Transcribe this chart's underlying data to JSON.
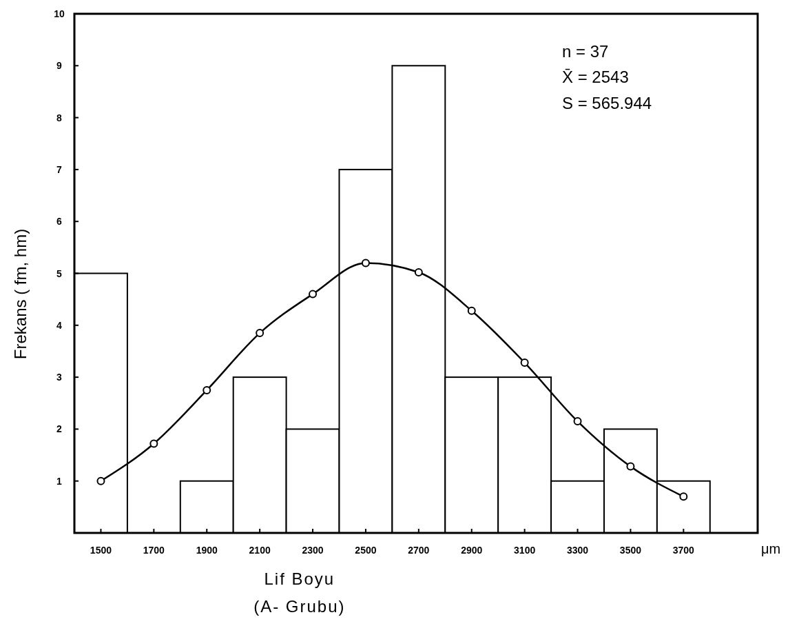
{
  "chart_data": {
    "type": "histogram",
    "xlabel": "Lif Boyu",
    "ylabel": "Frekans ( fm, hm)",
    "bins": [
      1400,
      1600,
      1800,
      2000,
      2200,
      2400,
      2600,
      2800,
      3000,
      3200,
      3400,
      3600,
      3800
    ],
    "values": [
      5,
      0,
      1,
      3,
      2,
      7,
      9,
      3,
      3,
      1,
      2,
      1
    ],
    "color": "#ffffff",
    "series": [
      {
        "type": "line",
        "color": "#000000",
        "marker": "circle",
        "x": [
          1500,
          1700,
          1900,
          2100,
          2300,
          2500,
          2700,
          2900,
          3100,
          3300,
          3500,
          3700
        ],
        "values": [
          1,
          1.72,
          2.75,
          3.85,
          4.6,
          5.2,
          5.02,
          4.28,
          3.28,
          2.15,
          1.28,
          0.7
        ]
      }
    ],
    "xlim": [
      1400,
      3980
    ],
    "ylim": [
      0,
      10
    ],
    "xticks": [
      1500,
      1700,
      1900,
      2100,
      2300,
      2500,
      2700,
      2900,
      3100,
      3300,
      3500,
      3700
    ],
    "yticks": [
      {
        "value": 0,
        "label": null
      },
      1,
      2,
      3,
      4,
      5,
      6,
      7,
      8,
      9,
      10
    ],
    "grid": false,
    "annotations": [
      "n = 37",
      "X̄ = 2543",
      "S = 565.944",
      "μm",
      "(A- Grubu)"
    ]
  }
}
